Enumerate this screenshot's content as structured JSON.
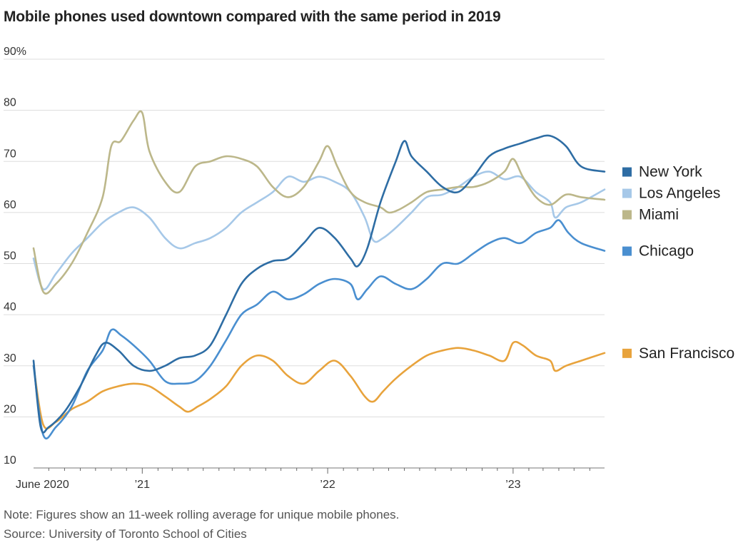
{
  "title": "Mobile phones used downtown compared with the same period in 2019",
  "note": "Note: Figures show an 11-week rolling average for unique mobile phones.",
  "source": "Source: University of Toronto School of Cities",
  "chart_data": {
    "type": "line",
    "title": "Mobile phones used downtown compared with the same period in 2019",
    "ylim": [
      10,
      90
    ],
    "xlim": [
      "2020-06-01",
      "2023-06-30"
    ],
    "y_ticks": [
      "90%",
      "80",
      "70",
      "60",
      "50",
      "40",
      "30",
      "20",
      "10"
    ],
    "y_tick_values": [
      90,
      80,
      70,
      60,
      50,
      40,
      30,
      20,
      10
    ],
    "x_tick_labels": [
      {
        "label": "June 2020",
        "date": "2020-06-01"
      },
      {
        "label": "’21",
        "date": "2021-01-01"
      },
      {
        "label": "’22",
        "date": "2022-01-01"
      },
      {
        "label": "’23",
        "date": "2023-01-01"
      }
    ],
    "grid": true,
    "legend": "right, labels at series end",
    "series": [
      {
        "name": "New York",
        "color": "#2e6da4",
        "points": [
          [
            "2020-06-01",
            31
          ],
          [
            "2020-06-15",
            18
          ],
          [
            "2020-07-01",
            18
          ],
          [
            "2020-08-01",
            21
          ],
          [
            "2020-09-01",
            26
          ],
          [
            "2020-10-01",
            32
          ],
          [
            "2020-10-20",
            34.5
          ],
          [
            "2020-11-15",
            33
          ],
          [
            "2020-12-15",
            30
          ],
          [
            "2021-01-15",
            29
          ],
          [
            "2021-02-15",
            30
          ],
          [
            "2021-03-15",
            31.5
          ],
          [
            "2021-04-15",
            32
          ],
          [
            "2021-05-15",
            34
          ],
          [
            "2021-06-15",
            40
          ],
          [
            "2021-07-15",
            46
          ],
          [
            "2021-08-15",
            49
          ],
          [
            "2021-09-15",
            50.5
          ],
          [
            "2021-10-15",
            51
          ],
          [
            "2021-11-15",
            54
          ],
          [
            "2021-12-15",
            57
          ],
          [
            "2022-01-15",
            55
          ],
          [
            "2022-02-15",
            51
          ],
          [
            "2022-03-01",
            49.5
          ],
          [
            "2022-03-20",
            53
          ],
          [
            "2022-04-15",
            62
          ],
          [
            "2022-05-15",
            70
          ],
          [
            "2022-06-01",
            74
          ],
          [
            "2022-06-15",
            71
          ],
          [
            "2022-07-15",
            68
          ],
          [
            "2022-08-15",
            65
          ],
          [
            "2022-09-15",
            64
          ],
          [
            "2022-10-15",
            67
          ],
          [
            "2022-11-15",
            71
          ],
          [
            "2022-12-15",
            72.5
          ],
          [
            "2023-01-15",
            73.5
          ],
          [
            "2023-02-15",
            74.5
          ],
          [
            "2023-03-15",
            75
          ],
          [
            "2023-04-15",
            73
          ],
          [
            "2023-05-15",
            69
          ],
          [
            "2023-06-30",
            68
          ]
        ]
      },
      {
        "name": "Los Angeles",
        "color": "#a6c8e8",
        "points": [
          [
            "2020-06-01",
            51
          ],
          [
            "2020-06-20",
            45
          ],
          [
            "2020-07-15",
            48
          ],
          [
            "2020-08-15",
            52
          ],
          [
            "2020-09-15",
            55
          ],
          [
            "2020-10-15",
            58
          ],
          [
            "2020-11-15",
            60
          ],
          [
            "2020-12-15",
            61
          ],
          [
            "2021-01-15",
            59
          ],
          [
            "2021-02-15",
            55
          ],
          [
            "2021-03-15",
            53
          ],
          [
            "2021-04-15",
            54
          ],
          [
            "2021-05-15",
            55
          ],
          [
            "2021-06-15",
            57
          ],
          [
            "2021-07-15",
            60
          ],
          [
            "2021-08-15",
            62
          ],
          [
            "2021-09-15",
            64
          ],
          [
            "2021-10-15",
            67
          ],
          [
            "2021-11-15",
            66
          ],
          [
            "2021-12-15",
            67
          ],
          [
            "2022-01-15",
            66
          ],
          [
            "2022-02-15",
            64
          ],
          [
            "2022-03-15",
            59
          ],
          [
            "2022-04-01",
            54.5
          ],
          [
            "2022-04-20",
            55
          ],
          [
            "2022-05-15",
            57
          ],
          [
            "2022-06-15",
            60
          ],
          [
            "2022-07-15",
            63
          ],
          [
            "2022-08-15",
            63.5
          ],
          [
            "2022-09-15",
            65
          ],
          [
            "2022-10-15",
            67
          ],
          [
            "2022-11-15",
            68
          ],
          [
            "2022-12-15",
            66.5
          ],
          [
            "2023-01-15",
            67
          ],
          [
            "2023-02-15",
            64
          ],
          [
            "2023-03-15",
            62
          ],
          [
            "2023-03-25",
            59
          ],
          [
            "2023-04-15",
            61
          ],
          [
            "2023-05-15",
            62
          ],
          [
            "2023-06-30",
            64.5
          ]
        ]
      },
      {
        "name": "Miami",
        "color": "#bcb78a",
        "points": [
          [
            "2020-06-01",
            53
          ],
          [
            "2020-06-20",
            44.5
          ],
          [
            "2020-07-15",
            46
          ],
          [
            "2020-08-15",
            50
          ],
          [
            "2020-09-15",
            56
          ],
          [
            "2020-10-15",
            63
          ],
          [
            "2020-11-01",
            73
          ],
          [
            "2020-11-20",
            74
          ],
          [
            "2020-12-15",
            78
          ],
          [
            "2021-01-01",
            79.5
          ],
          [
            "2021-01-15",
            72
          ],
          [
            "2021-02-15",
            66
          ],
          [
            "2021-03-15",
            64
          ],
          [
            "2021-04-15",
            69
          ],
          [
            "2021-05-15",
            70
          ],
          [
            "2021-06-15",
            71
          ],
          [
            "2021-07-15",
            70.5
          ],
          [
            "2021-08-15",
            69
          ],
          [
            "2021-09-15",
            65
          ],
          [
            "2021-10-15",
            63
          ],
          [
            "2021-11-15",
            65
          ],
          [
            "2021-12-15",
            70
          ],
          [
            "2022-01-01",
            73
          ],
          [
            "2022-01-20",
            69
          ],
          [
            "2022-02-15",
            64
          ],
          [
            "2022-03-15",
            62
          ],
          [
            "2022-04-15",
            61
          ],
          [
            "2022-05-01",
            60
          ],
          [
            "2022-05-20",
            60.5
          ],
          [
            "2022-06-15",
            62
          ],
          [
            "2022-07-15",
            64
          ],
          [
            "2022-08-15",
            64.5
          ],
          [
            "2022-09-15",
            65
          ],
          [
            "2022-10-15",
            65
          ],
          [
            "2022-11-15",
            66
          ],
          [
            "2022-12-15",
            68
          ],
          [
            "2023-01-01",
            70.5
          ],
          [
            "2023-01-20",
            67
          ],
          [
            "2023-02-15",
            63
          ],
          [
            "2023-03-15",
            61.5
          ],
          [
            "2023-04-15",
            63.5
          ],
          [
            "2023-05-15",
            63
          ],
          [
            "2023-06-30",
            62.5
          ]
        ]
      },
      {
        "name": "Chicago",
        "color": "#4a8fd0",
        "points": [
          [
            "2020-06-01",
            30
          ],
          [
            "2020-06-20",
            16.5
          ],
          [
            "2020-07-15",
            18
          ],
          [
            "2020-08-15",
            22
          ],
          [
            "2020-09-15",
            29
          ],
          [
            "2020-10-15",
            33
          ],
          [
            "2020-11-01",
            37
          ],
          [
            "2020-11-20",
            36
          ],
          [
            "2020-12-15",
            34
          ],
          [
            "2021-01-15",
            31
          ],
          [
            "2021-02-15",
            27
          ],
          [
            "2021-03-15",
            26.5
          ],
          [
            "2021-04-15",
            27
          ],
          [
            "2021-05-15",
            30
          ],
          [
            "2021-06-15",
            35
          ],
          [
            "2021-07-15",
            40
          ],
          [
            "2021-08-15",
            42
          ],
          [
            "2021-09-15",
            44.5
          ],
          [
            "2021-10-15",
            43
          ],
          [
            "2021-11-15",
            44
          ],
          [
            "2021-12-15",
            46
          ],
          [
            "2022-01-15",
            47
          ],
          [
            "2022-02-15",
            46
          ],
          [
            "2022-03-01",
            43
          ],
          [
            "2022-03-20",
            45
          ],
          [
            "2022-04-15",
            47.5
          ],
          [
            "2022-05-15",
            46
          ],
          [
            "2022-06-15",
            45
          ],
          [
            "2022-07-15",
            47
          ],
          [
            "2022-08-15",
            50
          ],
          [
            "2022-09-15",
            50
          ],
          [
            "2022-10-15",
            52
          ],
          [
            "2022-11-15",
            54
          ],
          [
            "2022-12-15",
            55
          ],
          [
            "2023-01-15",
            54
          ],
          [
            "2023-02-15",
            56
          ],
          [
            "2023-03-15",
            57
          ],
          [
            "2023-04-01",
            58.5
          ],
          [
            "2023-04-20",
            56
          ],
          [
            "2023-05-15",
            54
          ],
          [
            "2023-06-30",
            52.5
          ]
        ]
      },
      {
        "name": "San Francisco",
        "color": "#e8a33c",
        "points": [
          [
            "2020-06-01",
            30
          ],
          [
            "2020-06-20",
            18.5
          ],
          [
            "2020-07-15",
            19
          ],
          [
            "2020-08-15",
            21.5
          ],
          [
            "2020-09-15",
            23
          ],
          [
            "2020-10-15",
            25
          ],
          [
            "2020-11-15",
            26
          ],
          [
            "2020-12-15",
            26.5
          ],
          [
            "2021-01-15",
            26
          ],
          [
            "2021-02-15",
            24
          ],
          [
            "2021-03-15",
            22
          ],
          [
            "2021-04-01",
            21
          ],
          [
            "2021-04-20",
            22
          ],
          [
            "2021-05-15",
            23.5
          ],
          [
            "2021-06-15",
            26
          ],
          [
            "2021-07-15",
            30
          ],
          [
            "2021-08-15",
            32
          ],
          [
            "2021-09-15",
            31
          ],
          [
            "2021-10-15",
            28
          ],
          [
            "2021-11-15",
            26.5
          ],
          [
            "2021-12-15",
            29
          ],
          [
            "2022-01-15",
            31
          ],
          [
            "2022-02-15",
            28
          ],
          [
            "2022-03-15",
            24
          ],
          [
            "2022-04-01",
            23
          ],
          [
            "2022-04-20",
            25
          ],
          [
            "2022-05-15",
            27.5
          ],
          [
            "2022-06-15",
            30
          ],
          [
            "2022-07-15",
            32
          ],
          [
            "2022-08-15",
            33
          ],
          [
            "2022-09-15",
            33.5
          ],
          [
            "2022-10-15",
            33
          ],
          [
            "2022-11-15",
            32
          ],
          [
            "2022-12-15",
            31
          ],
          [
            "2023-01-01",
            34.5
          ],
          [
            "2023-01-20",
            34
          ],
          [
            "2023-02-15",
            32
          ],
          [
            "2023-03-15",
            31
          ],
          [
            "2023-03-25",
            29
          ],
          [
            "2023-04-15",
            30
          ],
          [
            "2023-05-15",
            31
          ],
          [
            "2023-06-30",
            32.5
          ]
        ]
      }
    ]
  }
}
